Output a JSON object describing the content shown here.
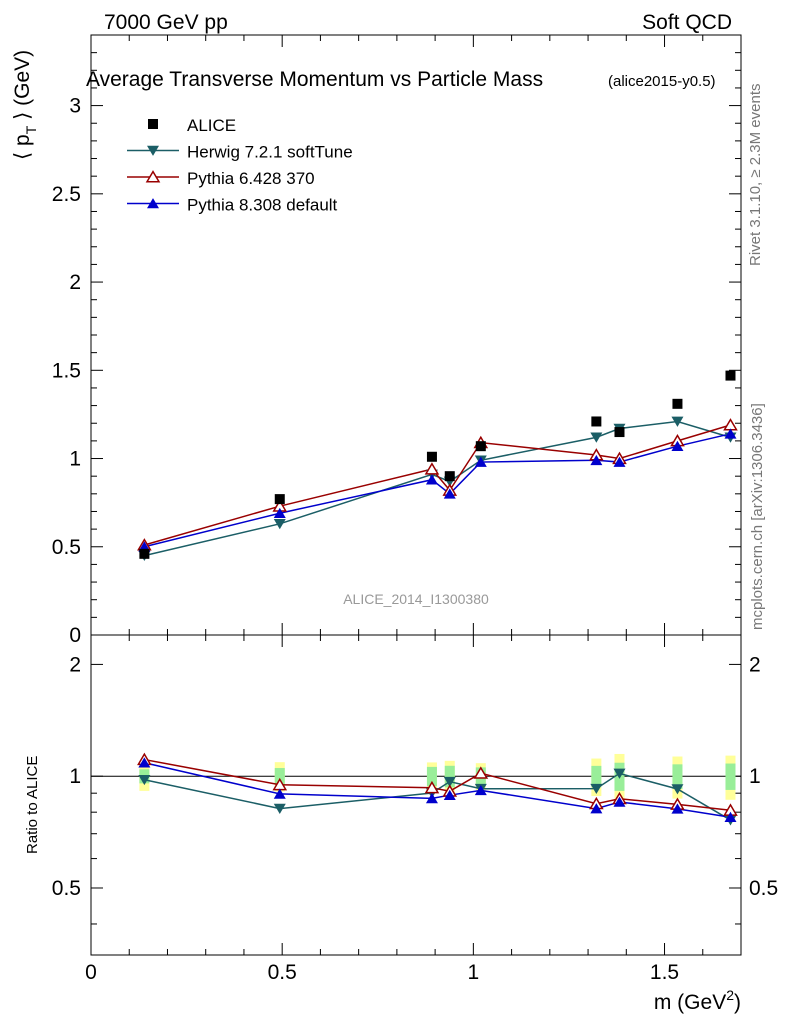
{
  "header": {
    "left": "7000 GeV pp",
    "right": "Soft QCD"
  },
  "side_labels": {
    "rivet": "Rivet 3.1.10, ≥ 2.3M events",
    "mcplots": "mcplots.cern.ch [arXiv:1306.3436]"
  },
  "chart_data": {
    "type": "scatter",
    "title": "Average Transverse Momentum vs Particle Mass",
    "subtitle": "(alice2015-y0.5)",
    "watermark": "ALICE_2014_I1300380",
    "xlabel": "m (GeV",
    "xlabel_sup": "2",
    "xlabel_close": ")",
    "ylabel": "⟨ p",
    "ylabel_sub": "T",
    "ylabel_rest": " ⟩ (GeV)",
    "ratio_ylabel": "Ratio to ALICE",
    "xlim": [
      0,
      1.7
    ],
    "ylim": [
      0,
      3.4
    ],
    "ratio_ylim": [
      0.33,
      2.4
    ],
    "ratio_scale": "log",
    "x_ticks": [
      {
        "v": 0,
        "label": "0"
      },
      {
        "v": 0.5,
        "label": "0.5"
      },
      {
        "v": 1,
        "label": "1"
      },
      {
        "v": 1.5,
        "label": "1.5"
      }
    ],
    "y_ticks": [
      {
        "v": 0,
        "label": "0"
      },
      {
        "v": 0.5,
        "label": "0.5"
      },
      {
        "v": 1,
        "label": "1"
      },
      {
        "v": 1.5,
        "label": "1.5"
      },
      {
        "v": 2,
        "label": "2"
      },
      {
        "v": 2.5,
        "label": "2.5"
      },
      {
        "v": 3,
        "label": "3"
      }
    ],
    "ratio_ticks": [
      {
        "v": 0.5,
        "label": "0.5"
      },
      {
        "v": 1,
        "label": "1"
      },
      {
        "v": 2,
        "label": "2"
      }
    ],
    "legend_position": "top-left",
    "x": [
      0.1396,
      0.4937,
      0.8917,
      0.9383,
      1.0195,
      1.3217,
      1.3822,
      1.5338,
      1.6725
    ],
    "data": {
      "name": "ALICE",
      "color": "#000000",
      "values": [
        0.46,
        0.77,
        1.01,
        0.9,
        1.07,
        1.21,
        1.15,
        1.31,
        1.47
      ],
      "band_inner": [
        0.02,
        0.04,
        0.06,
        0.06,
        0.06,
        0.08,
        0.1,
        0.1,
        0.12
      ],
      "band_outer": [
        0.04,
        0.07,
        0.09,
        0.09,
        0.09,
        0.14,
        0.17,
        0.17,
        0.2
      ]
    },
    "series": [
      {
        "name": "Herwig 7.2.1 softTune",
        "color": "#1b5e66",
        "marker": "triangle-down",
        "values": [
          0.45,
          0.63,
          0.91,
          0.87,
          0.99,
          1.12,
          1.17,
          1.21,
          1.12
        ]
      },
      {
        "name": "Pythia 6.428 370",
        "color": "#990000",
        "marker": "triangle-up-open",
        "values": [
          0.51,
          0.73,
          0.94,
          0.82,
          1.09,
          1.02,
          1.0,
          1.1,
          1.19
        ]
      },
      {
        "name": "Pythia 8.308 default",
        "color": "#0000cc",
        "marker": "triangle-up",
        "values": [
          0.5,
          0.69,
          0.88,
          0.8,
          0.98,
          0.99,
          0.98,
          1.07,
          1.14
        ]
      }
    ]
  }
}
